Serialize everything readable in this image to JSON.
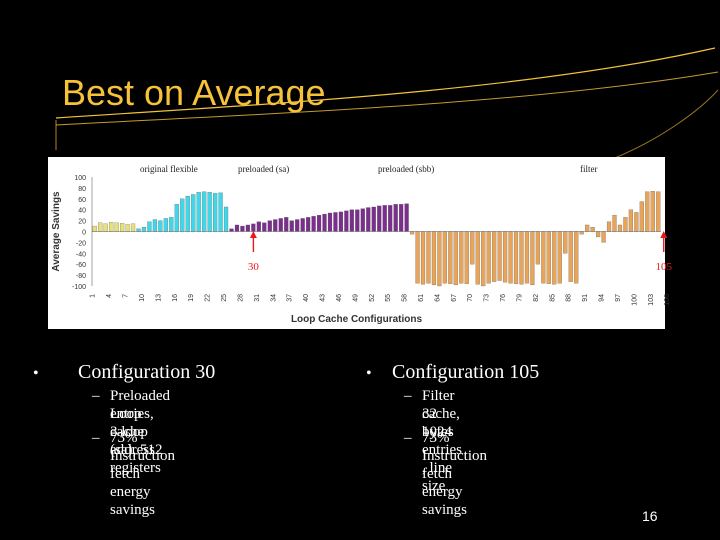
{
  "slide": {
    "title": "Best on Average",
    "page_number": "16",
    "colors": {
      "title": "#f5c23a",
      "background": "#000000",
      "accent_lines": "#f5c23a"
    }
  },
  "chart_data": {
    "type": "bar",
    "xlabel": "Loop Cache Configurations",
    "ylabel": "Average Savings",
    "ylim": [
      -100,
      100
    ],
    "yticks": [
      "100",
      "80",
      "60",
      "40",
      "20",
      "0",
      "-20",
      "-40",
      "-60",
      "-80",
      "-100"
    ],
    "xticks": [
      "1",
      "4",
      "7",
      "10",
      "13",
      "16",
      "19",
      "22",
      "25",
      "28",
      "31",
      "34",
      "37",
      "40",
      "43",
      "46",
      "49",
      "52",
      "55",
      "58",
      "61",
      "64",
      "67",
      "70",
      "73",
      "76",
      "79",
      "82",
      "85",
      "88",
      "91",
      "94",
      "97",
      "100",
      "103",
      "106"
    ],
    "groups": [
      {
        "name": "original flexible",
        "color": "#e8e07a",
        "values": [
          10,
          16,
          14,
          17,
          16,
          15,
          13,
          14
        ]
      },
      {
        "name": "preloaded (sa)",
        "color": "#40d7e8",
        "values": [
          5,
          8,
          18,
          22,
          20,
          24,
          26,
          50,
          60,
          65,
          68,
          72,
          73,
          72,
          70,
          71,
          45
        ]
      },
      {
        "name": "preloaded (sbb)",
        "color": "#7a2f8c",
        "values": [
          5,
          12,
          10,
          12,
          14,
          18,
          16,
          20,
          22,
          24,
          26,
          20,
          22,
          24,
          26,
          28,
          30,
          32,
          34,
          35,
          36,
          38,
          40,
          40,
          42,
          44,
          45,
          47,
          48,
          48,
          50,
          50,
          51
        ]
      },
      {
        "name": "filter",
        "color": "#e8a458",
        "values": [
          -5,
          -95,
          -97,
          -95,
          -98,
          -100,
          -95,
          -96,
          -98,
          -95,
          -96,
          -60,
          -97,
          -100,
          -95,
          -92,
          -90,
          -93,
          -95,
          -96,
          -97,
          -95,
          -98,
          -60,
          -95,
          -96,
          -97,
          -95,
          -40,
          -92,
          -95,
          -5,
          12,
          8,
          -10,
          -20,
          18,
          30,
          12,
          26,
          40,
          35,
          55,
          73,
          74,
          73
        ]
      }
    ],
    "annotations": [
      {
        "text": "30",
        "config": 30,
        "color": "#e8191a"
      },
      {
        "text": "105",
        "config": 105,
        "color": "#e8191a"
      }
    ],
    "grid": false,
    "legend": "top"
  },
  "bullets": {
    "left": {
      "heading": "Configuration 30",
      "items": [
        [
          "Preloaded Loop cache (sa), 512",
          "entries, 3 loop address registers"
        ],
        [
          "73% Instruction fetch energy savings"
        ]
      ]
    },
    "right": {
      "heading": "Configuration 105",
      "items": [
        [
          "Filter cache, 1024 entries , line size",
          "32 bytes"
        ],
        [
          "73% Instruction fetch energy savings"
        ]
      ]
    }
  },
  "symbols": {
    "bullet": "•",
    "dash": "–"
  }
}
